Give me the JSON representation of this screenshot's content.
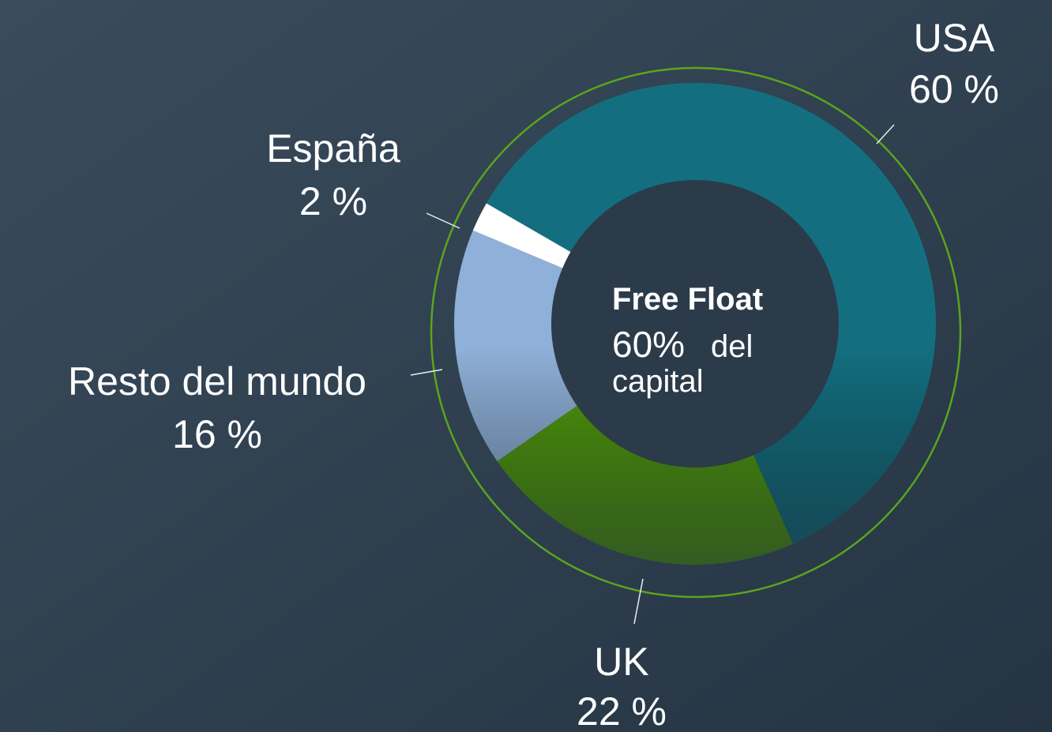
{
  "chart_data": {
    "type": "donut",
    "categories": [
      "USA",
      "UK",
      "Resto del mundo",
      "España"
    ],
    "values": [
      60,
      22,
      16,
      2
    ],
    "value_labels": [
      "60 %",
      "22 %",
      "16 %",
      "2 %"
    ],
    "colors": [
      "#136f80",
      "#4f9a0c",
      "#8fb0d8",
      "#ffffff"
    ],
    "annotation": [
      "Free Float",
      "60%",
      "del",
      "capital"
    ]
  }
}
